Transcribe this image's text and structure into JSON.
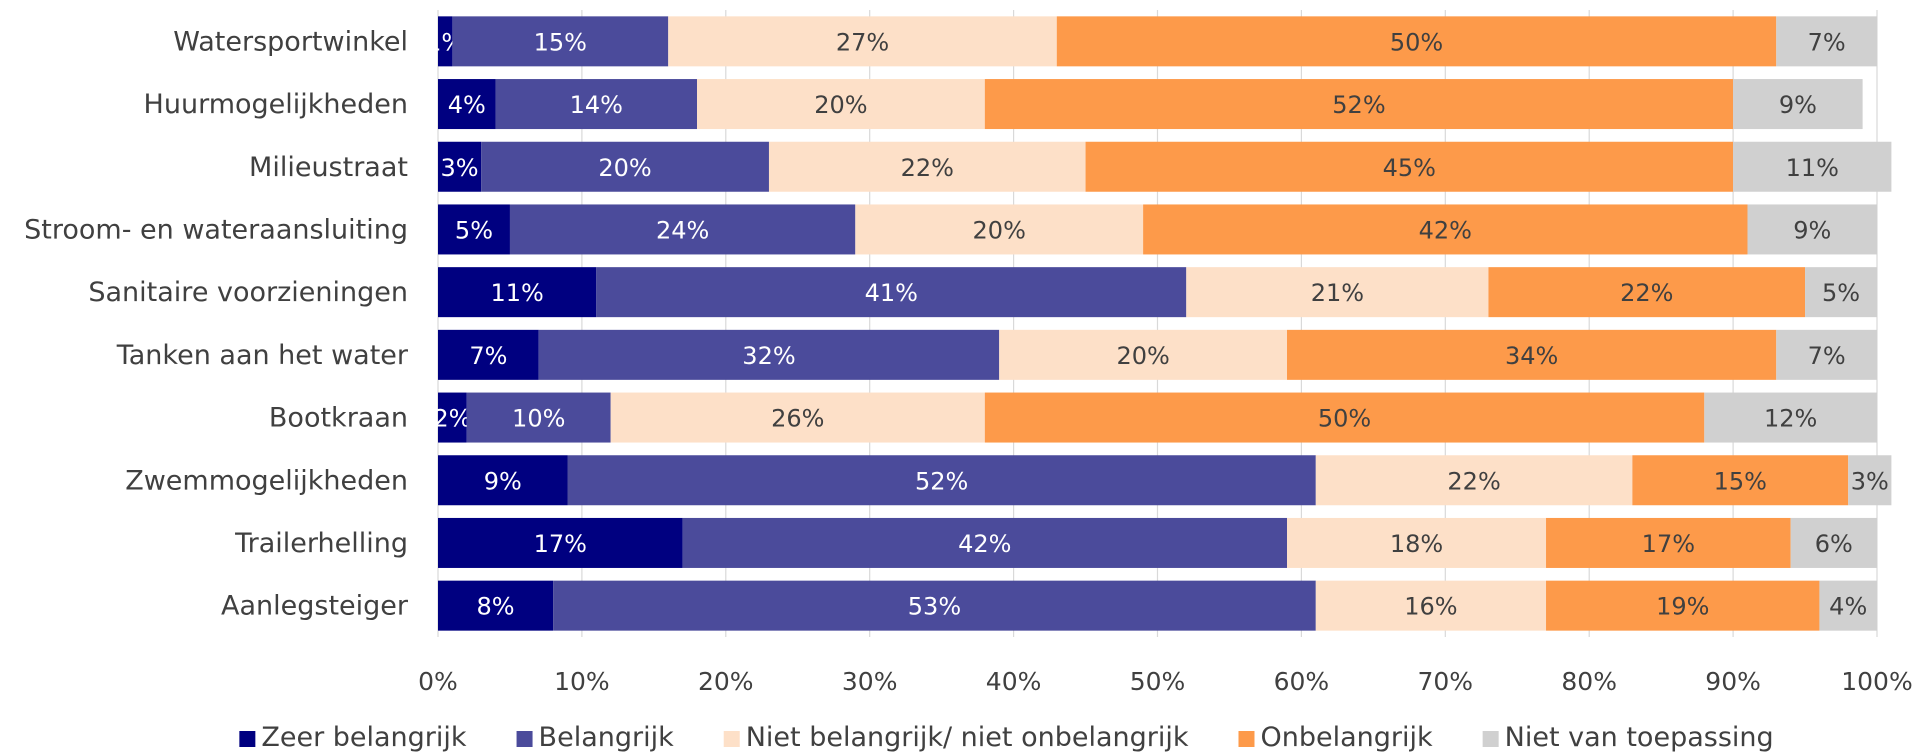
{
  "chart_data": {
    "type": "bar",
    "orientation": "horizontal",
    "stacked": "percent",
    "categories": [
      "Watersportwinkel",
      "Huurmogelijkheden",
      "Milieustraat",
      "Stroom- en wateraansluiting",
      "Sanitaire voorzieningen",
      "Tanken aan het water",
      "Bootkraan",
      "Zwemmogelijkheden",
      "Trailerhelling",
      "Aanlegsteiger"
    ],
    "series": [
      {
        "name": "Zeer belangrijk",
        "color": "#000080",
        "label_color": "#ffffff",
        "values": [
          1,
          4,
          3,
          5,
          11,
          7,
          2,
          9,
          17,
          8
        ]
      },
      {
        "name": "Belangrijk",
        "color": "#4b4b9b",
        "label_color": "#ffffff",
        "values": [
          15,
          14,
          20,
          24,
          41,
          32,
          10,
          52,
          42,
          53
        ]
      },
      {
        "name": "Niet belangrijk/ niet onbelangrijk",
        "color": "#fde0c8",
        "label_color": "#404040",
        "values": [
          27,
          20,
          22,
          20,
          21,
          20,
          26,
          22,
          18,
          16
        ]
      },
      {
        "name": "Onbelangrijk",
        "color": "#fd9a4a",
        "label_color": "#404040",
        "values": [
          50,
          52,
          45,
          42,
          22,
          34,
          50,
          15,
          17,
          19
        ]
      },
      {
        "name": "Niet van toepassing",
        "color": "#d0d0d0",
        "label_color": "#404040",
        "values": [
          7,
          9,
          11,
          9,
          5,
          7,
          12,
          3,
          6,
          4
        ]
      }
    ],
    "x_ticks": [
      "0%",
      "10%",
      "20%",
      "30%",
      "40%",
      "50%",
      "60%",
      "70%",
      "80%",
      "90%",
      "100%"
    ],
    "xlim": [
      0,
      100
    ],
    "grid": true,
    "legend_position": "bottom",
    "title": "",
    "xlabel": "",
    "ylabel": ""
  }
}
